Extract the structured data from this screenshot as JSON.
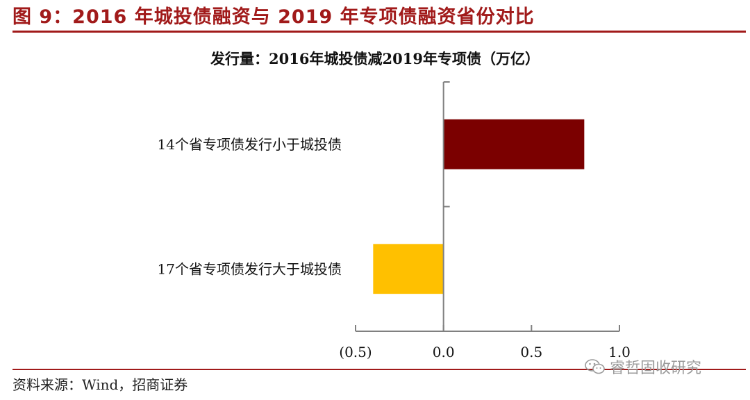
{
  "figure": {
    "title": "图 9：2016 年城投债融资与 2019 年专项债融资省份对比",
    "source": "资料来源：Wind，招商证券",
    "watermark": "睿哲固收研究"
  },
  "colors": {
    "accent": "#a11a1a",
    "bar_positive": "#7b0000",
    "bar_negative": "#ffc000",
    "axis": "#808080"
  },
  "chart_data": {
    "type": "bar",
    "orientation": "horizontal",
    "title": "发行量：2016年城投债减2019年专项债（万亿）",
    "categories": [
      "14个省专项债发行小于城投债",
      "17个省专项债发行大于城投债"
    ],
    "values": [
      0.8,
      -0.4
    ],
    "xlim": [
      -0.5,
      1.0
    ],
    "xticks": [
      -0.5,
      0.0,
      0.5,
      1.0
    ],
    "xtick_labels": [
      "(0.5)",
      "0.0",
      "0.5",
      "1.0"
    ],
    "xlabel": "",
    "ylabel": "",
    "grid": false,
    "legend": "none"
  }
}
